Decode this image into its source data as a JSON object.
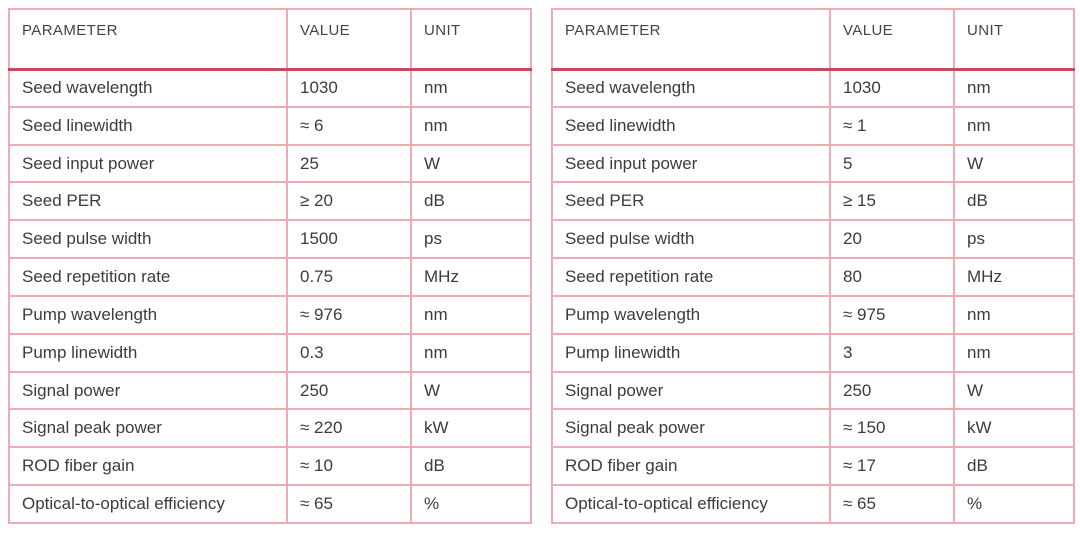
{
  "colors": {
    "border_light": "#f0abb2",
    "border_dark": "#c64a5b",
    "text": "#3c3c3c",
    "background": "#ffffff"
  },
  "tables": [
    {
      "name": "spec-table-left",
      "columns": [
        "Parameter",
        "Value",
        "Unit"
      ],
      "rows": [
        [
          "Seed wavelength",
          "1030",
          "nm"
        ],
        [
          "Seed linewidth",
          "≈ 6",
          "nm"
        ],
        [
          "Seed input power",
          "25",
          "W"
        ],
        [
          "Seed PER",
          "≥ 20",
          "dB"
        ],
        [
          "Seed pulse width",
          "1500",
          "ps"
        ],
        [
          "Seed repetition rate",
          "0.75",
          "MHz"
        ],
        [
          "Pump wavelength",
          "≈ 976",
          "nm"
        ],
        [
          "Pump linewidth",
          "0.3",
          "nm"
        ],
        [
          "Signal power",
          "250",
          "W"
        ],
        [
          "Signal peak power",
          "≈ 220",
          "kW"
        ],
        [
          "ROD fiber gain",
          "≈ 10",
          "dB"
        ],
        [
          "Optical-to-optical efficiency",
          "≈ 65",
          "%"
        ]
      ]
    },
    {
      "name": "spec-table-right",
      "columns": [
        "Parameter",
        "Value",
        "Unit"
      ],
      "rows": [
        [
          "Seed wavelength",
          "1030",
          "nm"
        ],
        [
          "Seed linewidth",
          "≈ 1",
          "nm"
        ],
        [
          "Seed input power",
          "5",
          "W"
        ],
        [
          "Seed PER",
          "≥ 15",
          "dB"
        ],
        [
          "Seed pulse width",
          "20",
          "ps"
        ],
        [
          "Seed repetition rate",
          "80",
          "MHz"
        ],
        [
          "Pump wavelength",
          "≈ 975",
          "nm"
        ],
        [
          "Pump linewidth",
          "3",
          "nm"
        ],
        [
          "Signal power",
          "250",
          "W"
        ],
        [
          "Signal peak power",
          "≈ 150",
          "kW"
        ],
        [
          "ROD fiber gain",
          "≈ 17",
          "dB"
        ],
        [
          "Optical-to-optical efficiency",
          "≈ 65",
          "%"
        ]
      ]
    }
  ]
}
